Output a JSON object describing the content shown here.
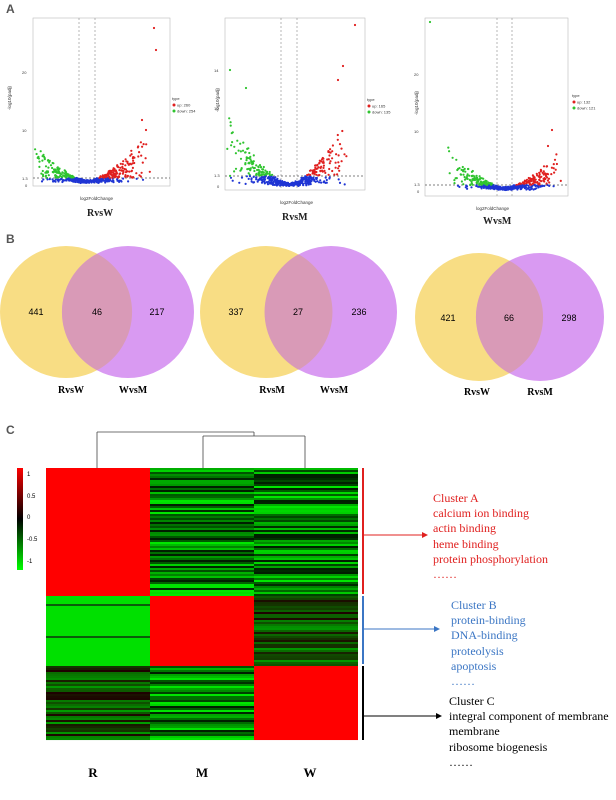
{
  "panels": {
    "a": "A",
    "b": "B",
    "c": "C"
  },
  "volcano": [
    {
      "ylabel": "-log10(padj)",
      "xlabel": "log2FoldChange",
      "title": "RvsW",
      "legend_title": "type",
      "up_label": "up: 260",
      "down_label": "down: 254",
      "ytick_top": "20",
      "ytick_mid": "10",
      "ytick_low": "1.3",
      "ytick_zero": "0"
    },
    {
      "ylabel": "-log10(padj)",
      "xlabel": "log2FoldChange",
      "title": "RvsM",
      "legend_title": "type",
      "up_label": "up: 165",
      "down_label": "down: 135",
      "ytick_top": "14",
      "ytick_mid": "10",
      "ytick_low": "1.3",
      "ytick_zero": "0"
    },
    {
      "ylabel": "-log10(padj)",
      "xlabel": "log2FoldChange",
      "title": "WvsM",
      "legend_title": "type",
      "up_label": "up: 132",
      "down_label": "down: 121",
      "ytick_top": "20",
      "ytick_mid": "10",
      "ytick_low": "1.3",
      "ytick_zero": "0"
    }
  ],
  "venn": [
    {
      "left": "441",
      "overlap": "46",
      "right": "217",
      "label_left": "RvsW",
      "label_right": "WvsM"
    },
    {
      "left": "337",
      "overlap": "27",
      "right": "236",
      "label_left": "RvsM",
      "label_right": "WvsM"
    },
    {
      "left": "421",
      "overlap": "66",
      "right": "298",
      "label_left": "RvsW",
      "label_right": "RvsM"
    }
  ],
  "heatmap": {
    "columns": [
      "R",
      "M",
      "W"
    ],
    "scale_labels": [
      "1",
      "0.5",
      "0",
      "-0.5",
      "-1"
    ]
  },
  "clusters": [
    {
      "title": "Cluster A",
      "color": "#e0201f",
      "items": [
        "calcium ion binding",
        "actin binding",
        "heme binding",
        "protein phosphorylation",
        "……"
      ]
    },
    {
      "title": "Cluster B",
      "color": "#3b76c4",
      "items": [
        "protein-binding",
        "DNA-binding",
        "proteolysis",
        "apoptosis",
        "……"
      ]
    },
    {
      "title": "Cluster C",
      "color": "#000000",
      "items": [
        "integral component of membrane",
        "membrane",
        "ribosome biogenesis",
        "……"
      ]
    }
  ],
  "colors": {
    "up": "#e0201f",
    "down": "#2fc42f",
    "none": "#1f35d4",
    "venn_yellow": "#f8dd84",
    "venn_purple": "#d99af2",
    "venn_overlap": "#d99ab7",
    "heat_red": "#ff0000",
    "heat_green": "#00e000",
    "heat_black": "#000000"
  }
}
